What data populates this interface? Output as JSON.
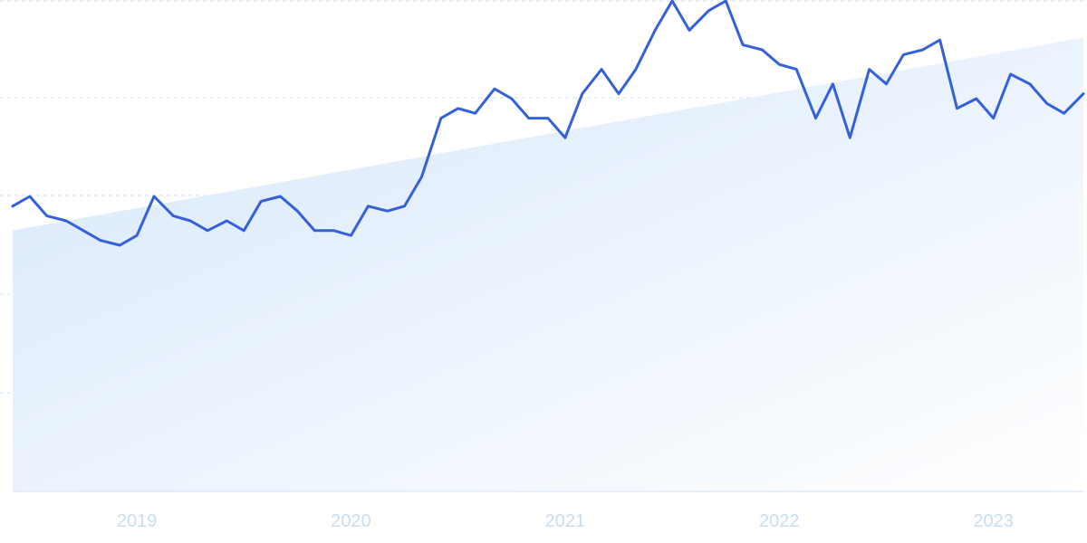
{
  "chart_data": {
    "type": "area",
    "title": "",
    "xlabel": "",
    "ylabel": "",
    "x_tick_labels": [
      "2019",
      "2020",
      "2021",
      "2022",
      "2023"
    ],
    "x_tick_positions": [
      2019.0,
      2020.0,
      2021.0,
      2022.0,
      2023.0
    ],
    "xlim": [
      2018.42,
      2023.42
    ],
    "ylim": [
      0,
      100
    ],
    "grid": true,
    "legend": "none",
    "series": [
      {
        "type": "line",
        "color": "#3461db",
        "x": [
          2018.42,
          2018.5,
          2018.58,
          2018.67,
          2018.75,
          2018.83,
          2018.92,
          2019.0,
          2019.08,
          2019.17,
          2019.25,
          2019.33,
          2019.42,
          2019.5,
          2019.58,
          2019.67,
          2019.75,
          2019.83,
          2019.92,
          2020.0,
          2020.08,
          2020.17,
          2020.25,
          2020.33,
          2020.42,
          2020.5,
          2020.58,
          2020.67,
          2020.75,
          2020.83,
          2020.92,
          2021.0,
          2021.08,
          2021.17,
          2021.25,
          2021.33,
          2021.42,
          2021.5,
          2021.58,
          2021.67,
          2021.75,
          2021.83,
          2021.92,
          2022.0,
          2022.08,
          2022.17,
          2022.25,
          2022.33,
          2022.42,
          2022.5,
          2022.58,
          2022.67,
          2022.75,
          2022.83,
          2022.92,
          2023.0,
          2023.08,
          2023.17,
          2023.25,
          2023.33,
          2023.42
        ],
        "y": [
          58,
          60,
          56,
          55,
          53,
          51,
          50,
          52,
          60,
          56,
          55,
          53,
          55,
          53,
          59,
          60,
          57,
          53,
          53,
          52,
          58,
          57,
          58,
          64,
          76,
          78,
          77,
          82,
          80,
          76,
          76,
          72,
          81,
          86,
          81,
          86,
          94,
          100,
          94,
          98,
          100,
          91,
          90,
          87,
          86,
          76,
          83,
          72,
          86,
          83,
          89,
          90,
          92,
          78,
          80,
          76,
          85,
          83,
          79,
          77,
          81
        ]
      },
      {
        "type": "trend-area",
        "color": "#dbe9fb",
        "x": [
          2018.42,
          2023.42
        ],
        "y": [
          53,
          92.5
        ]
      }
    ]
  }
}
